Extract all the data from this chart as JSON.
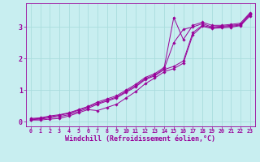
{
  "xlabel": "Windchill (Refroidissement éolien,°C)",
  "background_color": "#c8eef0",
  "line_color": "#990099",
  "grid_color": "#aadddd",
  "xlim": [
    -0.5,
    23.5
  ],
  "ylim": [
    -0.15,
    3.75
  ],
  "xticks": [
    0,
    1,
    2,
    3,
    4,
    5,
    6,
    7,
    8,
    9,
    10,
    11,
    12,
    13,
    14,
    15,
    16,
    17,
    18,
    19,
    20,
    21,
    22,
    23
  ],
  "yticks": [
    0,
    1,
    2,
    3
  ],
  "lines": [
    {
      "x": [
        0,
        1,
        2,
        3,
        4,
        5,
        6,
        7,
        8,
        9,
        10,
        11,
        12,
        13,
        14,
        15,
        16,
        17,
        18,
        19,
        20,
        21,
        22,
        23
      ],
      "y": [
        0.1,
        0.12,
        0.18,
        0.22,
        0.28,
        0.38,
        0.48,
        0.62,
        0.72,
        0.82,
        1.0,
        1.18,
        1.4,
        1.52,
        1.72,
        3.3,
        2.6,
        3.05,
        3.15,
        3.05,
        3.05,
        3.08,
        3.12,
        3.45
      ]
    },
    {
      "x": [
        0,
        1,
        2,
        3,
        4,
        5,
        6,
        7,
        8,
        9,
        10,
        11,
        12,
        13,
        14,
        15,
        16,
        17,
        18,
        19,
        20,
        21,
        22,
        23
      ],
      "y": [
        0.08,
        0.1,
        0.15,
        0.2,
        0.26,
        0.36,
        0.46,
        0.58,
        0.68,
        0.78,
        0.96,
        1.14,
        1.36,
        1.48,
        1.68,
        2.5,
        2.92,
        3.0,
        3.1,
        3.0,
        3.02,
        3.05,
        3.08,
        3.42
      ]
    },
    {
      "x": [
        0,
        1,
        2,
        3,
        4,
        5,
        6,
        7,
        8,
        9,
        10,
        11,
        12,
        13,
        14,
        15,
        16,
        17,
        18,
        19,
        20,
        21,
        22,
        23
      ],
      "y": [
        0.06,
        0.08,
        0.12,
        0.16,
        0.22,
        0.32,
        0.42,
        0.55,
        0.65,
        0.75,
        0.93,
        1.1,
        1.33,
        1.45,
        1.65,
        1.75,
        1.92,
        2.82,
        3.05,
        2.98,
        3.0,
        3.02,
        3.06,
        3.38
      ]
    },
    {
      "x": [
        0,
        1,
        2,
        3,
        4,
        5,
        6,
        7,
        8,
        9,
        10,
        11,
        12,
        13,
        14,
        15,
        16,
        17,
        18,
        19,
        20,
        21,
        22,
        23
      ],
      "y": [
        0.05,
        0.05,
        0.08,
        0.1,
        0.18,
        0.28,
        0.38,
        0.35,
        0.45,
        0.55,
        0.75,
        0.95,
        1.2,
        1.38,
        1.58,
        1.68,
        1.85,
        2.75,
        3.02,
        2.95,
        2.97,
        2.99,
        3.04,
        3.35
      ]
    }
  ]
}
